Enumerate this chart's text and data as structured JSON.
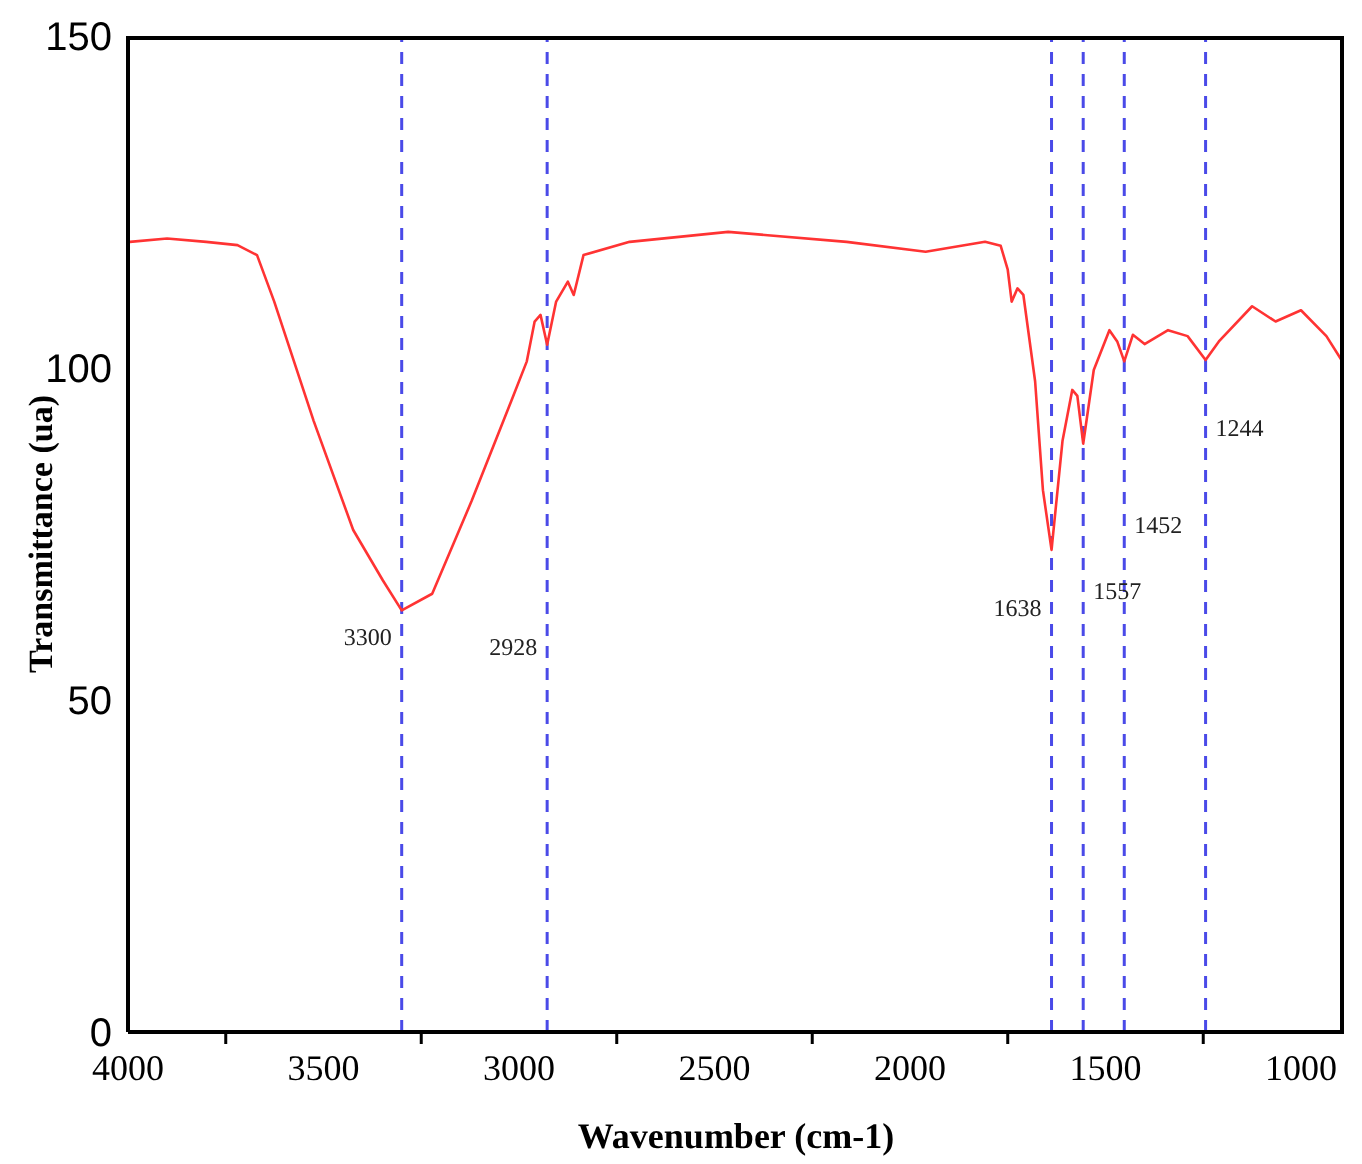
{
  "chart_data": {
    "type": "line",
    "xlabel": "Wavenumber (cm-1)",
    "ylabel": "Transmittance (ua)",
    "xlim": [
      4000,
      890
    ],
    "xticks": [
      4000,
      {
        "value": 3750,
        "label": null
      },
      3500,
      {
        "value": 3250,
        "label": null
      },
      3000,
      {
        "value": 2750,
        "label": null
      },
      2500,
      {
        "value": 2250,
        "label": null
      },
      2000,
      {
        "value": 1750,
        "label": null
      },
      1500,
      {
        "value": 1250,
        "label": null
      },
      1000
    ],
    "ylim": [
      0,
      150
    ],
    "yticks": [
      0,
      50,
      100,
      150
    ],
    "grid": false,
    "legend": false,
    "marker": "none",
    "line_style": "solid",
    "x": [
      3995,
      3900,
      3800,
      3720,
      3670,
      3626,
      3525,
      3424,
      3348,
      3300,
      3222,
      3121,
      3020,
      2980,
      2960,
      2945,
      2928,
      2905,
      2875,
      2860,
      2835,
      2717,
      2465,
      2364,
      2162,
      1960,
      1808,
      1768,
      1750,
      1740,
      1725,
      1710,
      1680,
      1660,
      1638,
      1610,
      1585,
      1572,
      1557,
      1530,
      1490,
      1470,
      1452,
      1430,
      1400,
      1340,
      1290,
      1244,
      1210,
      1125,
      1065,
      1000,
      935,
      890
    ],
    "series": [
      {
        "color": "#ff3333",
        "values": [
          119,
          119.5,
          119,
          118.5,
          117,
          110,
          92,
          75.6,
          68,
          63.5,
          66,
          80,
          95,
          101,
          107,
          108,
          103.5,
          110,
          113,
          111,
          117,
          119,
          120.5,
          120,
          119,
          117.5,
          119,
          118.4,
          114.8,
          110,
          112,
          111,
          98,
          81.6,
          72.6,
          89,
          96.7,
          95.8,
          88.6,
          99.7,
          105.7,
          104,
          101,
          105,
          103.6,
          105.7,
          104.8,
          101.2,
          104,
          109.3,
          107,
          108.7,
          104.8,
          100.6
        ]
      }
    ],
    "ref_lines": [
      {
        "axis": "x",
        "value": 3300,
        "color": "#4a4ae8",
        "line_style": "dashed"
      },
      {
        "axis": "x",
        "value": 2928,
        "color": "#4a4ae8",
        "line_style": "dashed"
      },
      {
        "axis": "x",
        "value": 1638,
        "color": "#4a4ae8",
        "line_style": "dashed"
      },
      {
        "axis": "x",
        "value": 1557,
        "color": "#4a4ae8",
        "line_style": "dashed"
      },
      {
        "axis": "x",
        "value": 1452,
        "color": "#4a4ae8",
        "line_style": "dashed"
      },
      {
        "axis": "x",
        "value": 1244,
        "color": "#4a4ae8",
        "line_style": "dashed"
      }
    ],
    "annotations": [
      {
        "text": "3300",
        "x": 3300,
        "y": 59.6
      },
      {
        "text": "2928",
        "x": 2928,
        "y": 58
      },
      {
        "text": "1638",
        "x": 1638,
        "y": 64
      },
      {
        "text": "1557",
        "x": 1557,
        "y": 66.5
      },
      {
        "text": "1452",
        "x": 1452,
        "y": 76.5
      },
      {
        "text": "1244",
        "x": 1244,
        "y": 91
      }
    ]
  }
}
